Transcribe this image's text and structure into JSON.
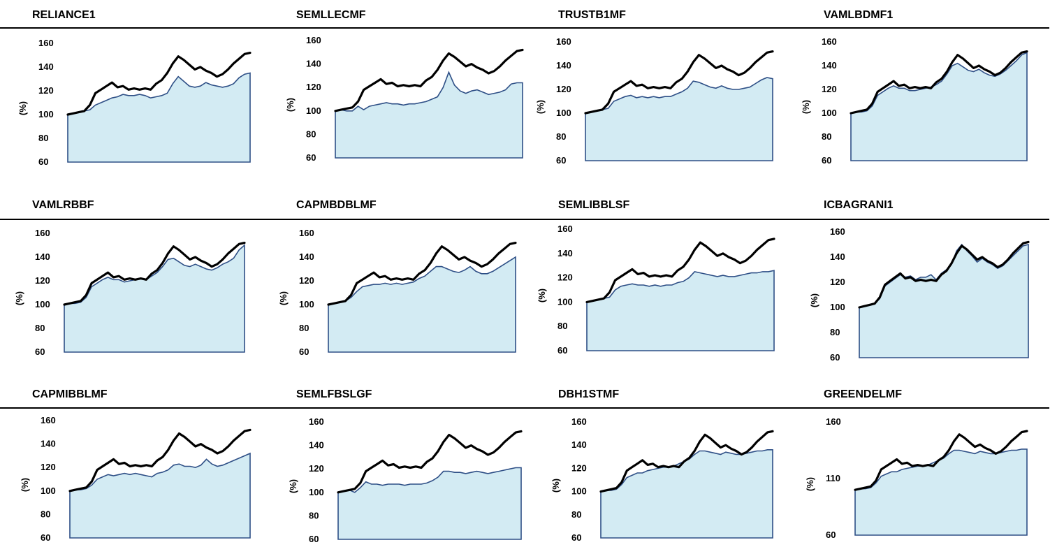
{
  "colors": {
    "fund_line": "#2e4f86",
    "fund_fill": "#d3ebf3",
    "index_line": "#000000"
  },
  "ylabel": "(%)",
  "chart_data": [
    {
      "type": "area",
      "title": "RELIANCE1",
      "ylabel": "(%)",
      "ylim": [
        60,
        160
      ],
      "yticks": [
        "160",
        "140",
        "120",
        "100",
        "80",
        "60"
      ],
      "index": [
        100,
        101,
        102,
        103,
        108,
        118,
        121,
        124,
        127,
        123,
        124,
        121,
        122,
        121,
        122,
        121,
        126,
        129,
        135,
        143,
        149,
        146,
        142,
        138,
        140,
        137,
        135,
        132,
        134,
        138,
        143,
        147,
        151,
        152
      ],
      "fund": [
        100,
        101,
        102,
        103,
        104,
        108,
        110,
        112,
        114,
        115,
        117,
        116,
        116,
        117,
        116,
        114,
        115,
        116,
        118,
        126,
        132,
        128,
        124,
        123,
        124,
        127,
        125,
        124,
        123,
        124,
        126,
        131,
        134,
        135
      ]
    },
    {
      "type": "area",
      "title": "SEMLLECMF",
      "ylabel": "(%)",
      "ylim": [
        60,
        160
      ],
      "yticks": [
        "160",
        "140",
        "120",
        "100",
        "80",
        "60"
      ],
      "index": [
        100,
        101,
        102,
        103,
        108,
        118,
        121,
        124,
        127,
        123,
        124,
        121,
        122,
        121,
        122,
        121,
        126,
        129,
        135,
        143,
        149,
        146,
        142,
        138,
        140,
        137,
        135,
        132,
        134,
        138,
        143,
        147,
        151,
        152
      ],
      "fund": [
        100,
        101,
        100,
        100,
        104,
        101,
        104,
        105,
        106,
        107,
        106,
        106,
        105,
        106,
        106,
        107,
        108,
        110,
        112,
        120,
        133,
        122,
        117,
        115,
        117,
        118,
        116,
        114,
        115,
        116,
        118,
        123,
        124,
        124
      ]
    },
    {
      "type": "area",
      "title": "TRUSTB1MF",
      "ylabel": "(%)",
      "ylim": [
        60,
        160
      ],
      "yticks": [
        "160",
        "140",
        "120",
        "100",
        "80",
        "60"
      ],
      "index": [
        100,
        101,
        102,
        103,
        108,
        118,
        121,
        124,
        127,
        123,
        124,
        121,
        122,
        121,
        122,
        121,
        126,
        129,
        135,
        143,
        149,
        146,
        142,
        138,
        140,
        137,
        135,
        132,
        134,
        138,
        143,
        147,
        151,
        152
      ],
      "fund": [
        100,
        101,
        102,
        103,
        104,
        110,
        112,
        114,
        115,
        113,
        114,
        113,
        114,
        113,
        114,
        114,
        116,
        118,
        121,
        127,
        126,
        124,
        122,
        121,
        123,
        121,
        120,
        120,
        121,
        122,
        125,
        128,
        130,
        129
      ]
    },
    {
      "type": "area",
      "title": "VAMLBDMF1",
      "ylabel": "(%)",
      "ylim": [
        60,
        160
      ],
      "yticks": [
        "160",
        "140",
        "120",
        "100",
        "80",
        "60"
      ],
      "index": [
        100,
        101,
        102,
        103,
        108,
        118,
        121,
        124,
        127,
        123,
        124,
        121,
        122,
        121,
        122,
        121,
        126,
        129,
        135,
        143,
        149,
        146,
        142,
        138,
        140,
        137,
        135,
        132,
        134,
        138,
        143,
        147,
        151,
        152
      ],
      "fund": [
        100,
        101,
        101,
        102,
        106,
        115,
        118,
        121,
        123,
        121,
        121,
        119,
        119,
        120,
        121,
        122,
        124,
        127,
        133,
        140,
        142,
        139,
        136,
        135,
        137,
        134,
        132,
        131,
        133,
        136,
        140,
        144,
        149,
        151
      ]
    },
    {
      "type": "area",
      "title": "VAMLRBBF",
      "ylabel": "(%)",
      "ylim": [
        60,
        160
      ],
      "yticks": [
        "160",
        "140",
        "120",
        "100",
        "80",
        "60"
      ],
      "index": [
        100,
        101,
        102,
        103,
        108,
        118,
        121,
        124,
        127,
        123,
        124,
        121,
        122,
        121,
        122,
        121,
        126,
        129,
        135,
        143,
        149,
        146,
        142,
        138,
        140,
        137,
        135,
        132,
        134,
        138,
        143,
        147,
        151,
        152
      ],
      "fund": [
        100,
        101,
        101,
        102,
        106,
        115,
        118,
        121,
        123,
        121,
        121,
        119,
        120,
        121,
        122,
        121,
        124,
        127,
        132,
        138,
        139,
        136,
        133,
        132,
        134,
        132,
        130,
        129,
        131,
        134,
        136,
        139,
        146,
        150
      ]
    },
    {
      "type": "area",
      "title": "CAPMBDBLMF",
      "ylabel": "(%)",
      "ylim": [
        60,
        160
      ],
      "yticks": [
        "160",
        "140",
        "120",
        "100",
        "80",
        "60"
      ],
      "index": [
        100,
        101,
        102,
        103,
        108,
        118,
        121,
        124,
        127,
        123,
        124,
        121,
        122,
        121,
        122,
        121,
        126,
        129,
        135,
        143,
        149,
        146,
        142,
        138,
        140,
        137,
        135,
        132,
        134,
        138,
        143,
        147,
        151,
        152
      ],
      "fund": [
        100,
        101,
        102,
        103,
        106,
        111,
        115,
        116,
        117,
        117,
        118,
        117,
        118,
        117,
        118,
        119,
        122,
        124,
        128,
        132,
        132,
        130,
        128,
        127,
        129,
        132,
        128,
        126,
        126,
        128,
        131,
        134,
        137,
        140
      ]
    },
    {
      "type": "area",
      "title": "SEMLIBBLSF",
      "ylabel": "(%)",
      "ylim": [
        60,
        160
      ],
      "yticks": [
        "160",
        "140",
        "120",
        "100",
        "80",
        "60"
      ],
      "index": [
        100,
        101,
        102,
        103,
        108,
        118,
        121,
        124,
        127,
        123,
        124,
        121,
        122,
        121,
        122,
        121,
        126,
        129,
        135,
        143,
        149,
        146,
        142,
        138,
        140,
        137,
        135,
        132,
        134,
        138,
        143,
        147,
        151,
        152
      ],
      "fund": [
        100,
        101,
        102,
        103,
        104,
        110,
        113,
        114,
        115,
        114,
        114,
        113,
        114,
        113,
        114,
        114,
        116,
        117,
        120,
        125,
        124,
        123,
        122,
        121,
        122,
        121,
        121,
        122,
        123,
        124,
        124,
        125,
        125,
        126
      ]
    },
    {
      "type": "area",
      "title": "ICBAGRANI1",
      "ylabel": "(%)",
      "ylim": [
        60,
        160
      ],
      "yticks": [
        "160",
        "140",
        "120",
        "100",
        "80",
        "60"
      ],
      "index": [
        100,
        101,
        102,
        103,
        108,
        118,
        121,
        124,
        127,
        123,
        124,
        121,
        122,
        121,
        122,
        121,
        126,
        129,
        135,
        143,
        149,
        146,
        142,
        138,
        140,
        137,
        135,
        132,
        134,
        138,
        143,
        147,
        151,
        152
      ],
      "fund": [
        100,
        101,
        102,
        103,
        107,
        117,
        120,
        123,
        126,
        124,
        125,
        122,
        124,
        124,
        126,
        122,
        127,
        130,
        134,
        145,
        150,
        145,
        141,
        136,
        139,
        136,
        134,
        131,
        133,
        137,
        141,
        145,
        149,
        150
      ]
    },
    {
      "type": "area",
      "title": "CAPMIBBLMF",
      "ylabel": "(%)",
      "ylim": [
        60,
        160
      ],
      "yticks": [
        "160",
        "140",
        "120",
        "100",
        "80",
        "60"
      ],
      "index": [
        100,
        101,
        102,
        103,
        108,
        118,
        121,
        124,
        127,
        123,
        124,
        121,
        122,
        121,
        122,
        121,
        126,
        129,
        135,
        143,
        149,
        146,
        142,
        138,
        140,
        137,
        135,
        132,
        134,
        138,
        143,
        147,
        151,
        152
      ],
      "fund": [
        100,
        101,
        101,
        102,
        105,
        110,
        112,
        114,
        113,
        114,
        115,
        114,
        115,
        114,
        113,
        112,
        115,
        116,
        118,
        122,
        123,
        121,
        121,
        120,
        122,
        127,
        123,
        121,
        122,
        124,
        126,
        128,
        130,
        132
      ]
    },
    {
      "type": "area",
      "title": "SEMLFBSLGF",
      "ylabel": "(%)",
      "ylim": [
        60,
        160
      ],
      "yticks": [
        "160",
        "140",
        "120",
        "100",
        "80",
        "60"
      ],
      "index": [
        100,
        101,
        102,
        103,
        108,
        118,
        121,
        124,
        127,
        123,
        124,
        121,
        122,
        121,
        122,
        121,
        126,
        129,
        135,
        143,
        149,
        146,
        142,
        138,
        140,
        137,
        135,
        132,
        134,
        138,
        143,
        147,
        151,
        152
      ],
      "fund": [
        100,
        101,
        102,
        100,
        104,
        109,
        107,
        107,
        106,
        107,
        107,
        107,
        106,
        107,
        107,
        107,
        108,
        110,
        113,
        118,
        118,
        117,
        117,
        116,
        117,
        118,
        117,
        116,
        117,
        118,
        119,
        120,
        121,
        121
      ]
    },
    {
      "type": "area",
      "title": "DBH1STMF",
      "ylabel": "(%)",
      "ylim": [
        60,
        160
      ],
      "yticks": [
        "160",
        "140",
        "120",
        "100",
        "80",
        "60"
      ],
      "index": [
        100,
        101,
        102,
        103,
        108,
        118,
        121,
        124,
        127,
        123,
        124,
        121,
        122,
        121,
        122,
        121,
        126,
        129,
        135,
        143,
        149,
        146,
        142,
        138,
        140,
        137,
        135,
        132,
        134,
        138,
        143,
        147,
        151,
        152
      ],
      "fund": [
        100,
        101,
        101,
        102,
        106,
        112,
        114,
        116,
        116,
        118,
        119,
        120,
        121,
        121,
        122,
        124,
        126,
        128,
        132,
        135,
        135,
        134,
        133,
        132,
        134,
        133,
        132,
        132,
        133,
        134,
        135,
        135,
        136,
        136
      ]
    },
    {
      "type": "area",
      "title": "GREENDELMF",
      "ylabel": "(%)",
      "ylim": [
        60,
        160
      ],
      "yticks": [
        "160",
        "110",
        "60"
      ],
      "index": [
        100,
        101,
        102,
        103,
        108,
        118,
        121,
        124,
        127,
        123,
        124,
        121,
        122,
        121,
        122,
        121,
        126,
        129,
        135,
        143,
        149,
        146,
        142,
        138,
        140,
        137,
        135,
        132,
        134,
        138,
        143,
        147,
        151,
        152
      ],
      "fund": [
        100,
        101,
        101,
        102,
        106,
        112,
        114,
        116,
        116,
        118,
        119,
        120,
        121,
        121,
        122,
        124,
        126,
        128,
        132,
        135,
        135,
        134,
        133,
        132,
        134,
        133,
        132,
        132,
        133,
        134,
        135,
        135,
        136,
        136
      ]
    }
  ]
}
